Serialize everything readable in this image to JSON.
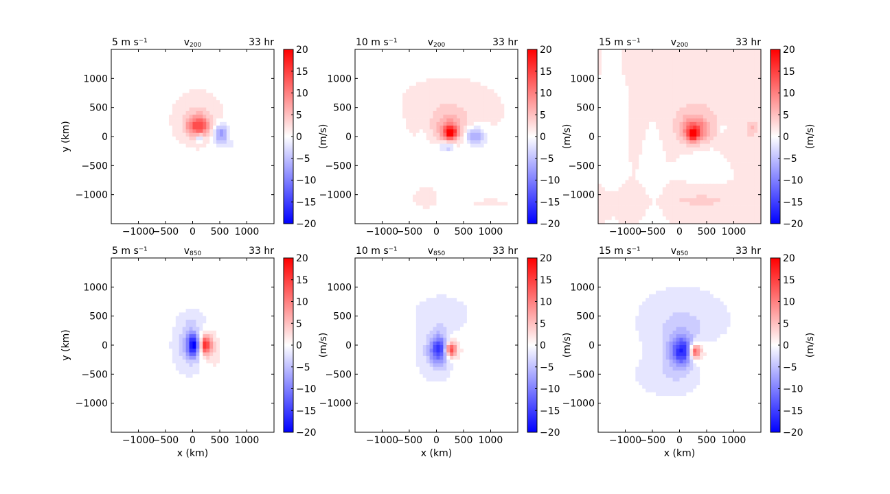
{
  "chart_data": {
    "type": "contourf",
    "rows": 2,
    "cols": 3,
    "x_ticks": [
      -1000,
      -500,
      0,
      500,
      1000
    ],
    "x_tick_labels": [
      "−1000",
      "−500",
      "0",
      "500",
      "1000"
    ],
    "y_ticks": [
      -1000,
      -500,
      0,
      500,
      1000
    ],
    "y_tick_labels": [
      "−1000",
      "−500",
      "0",
      "500",
      "1000"
    ],
    "xlim": [
      -1500,
      1500
    ],
    "ylim": [
      -1500,
      1500
    ],
    "xlabel": "x (km)",
    "ylabel": "y (km)",
    "colorbar": {
      "label": "(m/s)",
      "range": [
        -20,
        20
      ],
      "ticks": [
        -20,
        -15,
        -10,
        -5,
        0,
        5,
        10,
        15,
        20
      ],
      "tick_labels": [
        "−20",
        "−15",
        "−10",
        "−5",
        "0",
        "5",
        "10",
        "15",
        "20"
      ],
      "colormap": "bwr",
      "color_min": "#0000ff",
      "color_mid": "#ffffff",
      "color_max": "#ff0000"
    },
    "panels": [
      {
        "left_title": "5 m s⁻¹",
        "center_title": "v",
        "center_sub": "200",
        "right_title": "33 hr",
        "show_ylabel": true,
        "show_xlabel": false,
        "background": 0.5,
        "features": [
          {
            "x": -1350,
            "y": 0,
            "rx": 120,
            "ry": 1300,
            "v": -1.2
          },
          {
            "x": 1300,
            "y": 600,
            "rx": 250,
            "ry": 500,
            "v": -1.0
          },
          {
            "x": 100,
            "y": 300,
            "rx": 380,
            "ry": 380,
            "v": 3
          },
          {
            "x": 100,
            "y": 180,
            "rx": 200,
            "ry": 170,
            "v": 12
          },
          {
            "x": 130,
            "y": -30,
            "rx": 70,
            "ry": 60,
            "v": -8
          },
          {
            "x": 520,
            "y": 50,
            "rx": 130,
            "ry": 160,
            "v": -9
          },
          {
            "x": 650,
            "y": -150,
            "rx": 260,
            "ry": 160,
            "v": -1.5
          }
        ]
      },
      {
        "left_title": "10 m s⁻¹",
        "center_title": "v",
        "center_sub": "200",
        "right_title": "33 hr",
        "show_ylabel": false,
        "show_xlabel": false,
        "background": 0.8,
        "features": [
          {
            "x": -800,
            "y": -300,
            "rx": 170,
            "ry": 900,
            "v": -1.5
          },
          {
            "x": -220,
            "y": -200,
            "rx": 120,
            "ry": 500,
            "v": -1.0
          },
          {
            "x": 200,
            "y": 450,
            "rx": 700,
            "ry": 380,
            "v": 1.8
          },
          {
            "x": 250,
            "y": 130,
            "rx": 300,
            "ry": 280,
            "v": 6
          },
          {
            "x": 260,
            "y": 70,
            "rx": 120,
            "ry": 110,
            "v": 16
          },
          {
            "x": 700,
            "y": 0,
            "rx": 200,
            "ry": 160,
            "v": -8
          },
          {
            "x": 200,
            "y": -180,
            "rx": 160,
            "ry": 90,
            "v": -6
          },
          {
            "x": 300,
            "y": -400,
            "rx": 650,
            "ry": 160,
            "v": -1.5
          },
          {
            "x": 1000,
            "y": -1150,
            "rx": 220,
            "ry": 40,
            "v": 2
          },
          {
            "x": -200,
            "y": -1050,
            "rx": 150,
            "ry": 120,
            "v": 1.8
          }
        ]
      },
      {
        "left_title": "15 m s⁻¹",
        "center_title": "v",
        "center_sub": "200",
        "right_title": "33 hr",
        "show_ylabel": false,
        "show_xlabel": false,
        "background": 1.0,
        "features": [
          {
            "x": -1200,
            "y": 400,
            "rx": 120,
            "ry": 650,
            "v": -1.5
          },
          {
            "x": -450,
            "y": -600,
            "rx": 120,
            "ry": 700,
            "v": -1.5
          },
          {
            "x": 0,
            "y": 1200,
            "rx": 600,
            "ry": 250,
            "v": 2
          },
          {
            "x": 300,
            "y": 250,
            "rx": 500,
            "ry": 420,
            "v": 3.5
          },
          {
            "x": 270,
            "y": 100,
            "rx": 220,
            "ry": 200,
            "v": 10
          },
          {
            "x": 250,
            "y": 40,
            "rx": 80,
            "ry": 80,
            "v": 18
          },
          {
            "x": 500,
            "y": -350,
            "rx": 400,
            "ry": 250,
            "v": -1.5
          },
          {
            "x": 1000,
            "y": -100,
            "rx": 300,
            "ry": 300,
            "v": 1.8
          },
          {
            "x": 1350,
            "y": 150,
            "rx": 120,
            "ry": 150,
            "v": 4
          },
          {
            "x": 800,
            "y": 150,
            "rx": 90,
            "ry": 90,
            "v": -3
          },
          {
            "x": 400,
            "y": -1100,
            "rx": 800,
            "ry": 150,
            "v": 2.5
          }
        ]
      },
      {
        "left_title": "5 m s⁻¹",
        "center_title": "v",
        "center_sub": "850",
        "right_title": "33 hr",
        "show_ylabel": true,
        "show_xlabel": true,
        "background": -0.5,
        "features": [
          {
            "x": -1350,
            "y": 0,
            "rx": 100,
            "ry": 1300,
            "v": 1.0
          },
          {
            "x": 1350,
            "y": -200,
            "rx": 120,
            "ry": 1200,
            "v": 1.0
          },
          {
            "x": 0,
            "y": 450,
            "rx": 200,
            "ry": 120,
            "v": -1.5
          },
          {
            "x": -30,
            "y": 0,
            "rx": 240,
            "ry": 350,
            "v": -6
          },
          {
            "x": 20,
            "y": 0,
            "rx": 110,
            "ry": 190,
            "v": -15
          },
          {
            "x": 280,
            "y": 0,
            "rx": 200,
            "ry": 260,
            "v": 5
          },
          {
            "x": 230,
            "y": 0,
            "rx": 100,
            "ry": 150,
            "v": 15
          },
          {
            "x": 500,
            "y": -400,
            "rx": 300,
            "ry": 300,
            "v": 1.2
          }
        ]
      },
      {
        "left_title": "10 m s⁻¹",
        "center_title": "v",
        "center_sub": "850",
        "right_title": "33 hr",
        "show_ylabel": false,
        "show_xlabel": true,
        "background": -0.5,
        "features": [
          {
            "x": -1400,
            "y": 0,
            "rx": 100,
            "ry": 1300,
            "v": 1.0
          },
          {
            "x": 1350,
            "y": 0,
            "rx": 100,
            "ry": 1200,
            "v": 1.5
          },
          {
            "x": 100,
            "y": 550,
            "rx": 400,
            "ry": 250,
            "v": -2
          },
          {
            "x": 50,
            "y": -80,
            "rx": 300,
            "ry": 380,
            "v": -5
          },
          {
            "x": 50,
            "y": -80,
            "rx": 150,
            "ry": 220,
            "v": -12
          },
          {
            "x": 280,
            "y": -60,
            "rx": 200,
            "ry": 220,
            "v": 5
          },
          {
            "x": 260,
            "y": -80,
            "rx": 90,
            "ry": 120,
            "v": 15
          },
          {
            "x": 600,
            "y": -500,
            "rx": 300,
            "ry": 300,
            "v": 1.2
          }
        ]
      },
      {
        "left_title": "15 m s⁻¹",
        "center_title": "v",
        "center_sub": "850",
        "right_title": "33 hr",
        "show_ylabel": false,
        "show_xlabel": true,
        "background": -0.6,
        "features": [
          {
            "x": 1300,
            "y": 0,
            "rx": 150,
            "ry": 1200,
            "v": 1.2
          },
          {
            "x": -1100,
            "y": 400,
            "rx": 200,
            "ry": 600,
            "v": 0.8
          },
          {
            "x": 50,
            "y": 400,
            "rx": 650,
            "ry": 450,
            "v": -2.5
          },
          {
            "x": -200,
            "y": -500,
            "rx": 500,
            "ry": 300,
            "v": -1.8
          },
          {
            "x": 50,
            "y": -100,
            "rx": 350,
            "ry": 380,
            "v": -5
          },
          {
            "x": 50,
            "y": -100,
            "rx": 180,
            "ry": 230,
            "v": -12
          },
          {
            "x": 300,
            "y": -100,
            "rx": 200,
            "ry": 220,
            "v": 5
          },
          {
            "x": 280,
            "y": -110,
            "rx": 90,
            "ry": 110,
            "v": 14
          },
          {
            "x": 600,
            "y": -300,
            "rx": 350,
            "ry": 350,
            "v": 1.2
          }
        ]
      }
    ]
  }
}
